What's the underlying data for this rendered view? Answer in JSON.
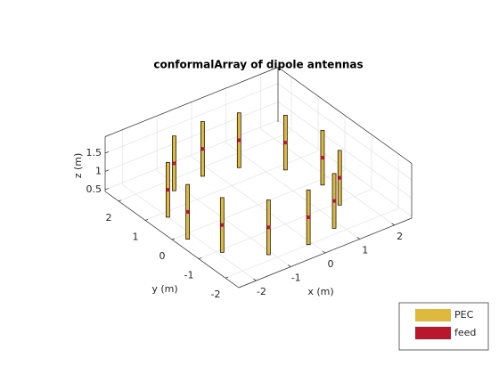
{
  "chart_data": {
    "type": "dipole-array",
    "title": "conformalArray of dipole antennas",
    "xlabel": "x (m)",
    "ylabel": "y (m)",
    "zlabel": "z (m)",
    "xlim": [
      -2.5,
      2.5
    ],
    "ylim": [
      -2.5,
      2.5
    ],
    "zlim": [
      0.45,
      1.95
    ],
    "xticks": [
      -2,
      -1,
      0,
      1,
      2
    ],
    "yticks": [
      -2,
      -1,
      0,
      1,
      2
    ],
    "zticks": [
      0.5,
      1,
      1.5
    ],
    "grid": true,
    "legend_position": "southeast",
    "dipole_length": 1.5,
    "series": [
      {
        "name": "PEC",
        "color": "#dfb93e"
      },
      {
        "name": "feed",
        "color": "#b8182e"
      }
    ],
    "dipoles": {
      "x": [
        -2.0,
        -2.2,
        -1.9,
        -1.1,
        -0.1,
        0.8,
        1.5,
        1.7,
        1.4,
        0.6,
        -0.3,
        -1.2
      ],
      "y": [
        0.8,
        -0.2,
        -1.1,
        -1.8,
        -2.0,
        -1.8,
        -1.1,
        -0.2,
        0.8,
        1.5,
        1.7,
        1.6
      ],
      "z": [
        1.2,
        1.2,
        1.2,
        1.2,
        1.2,
        1.2,
        1.2,
        1.2,
        1.2,
        1.2,
        1.2,
        1.2
      ]
    }
  }
}
